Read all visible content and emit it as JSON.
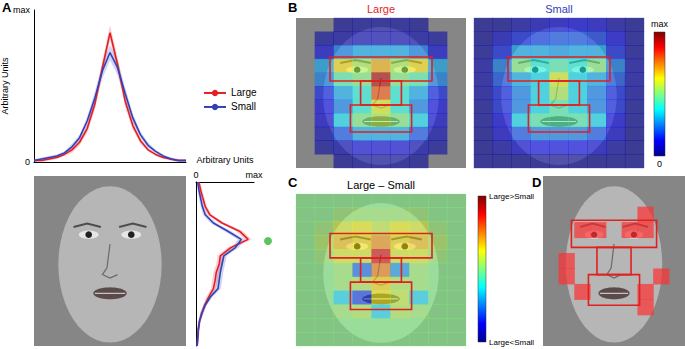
{
  "chart_data": [
    {
      "panel": "A",
      "type": "line",
      "x": [
        0,
        5,
        10,
        15,
        20,
        25,
        30,
        35,
        40,
        45,
        50,
        55,
        60,
        65,
        70,
        75,
        80,
        85,
        90,
        95,
        100
      ],
      "xlim": [
        0,
        100
      ],
      "ylim": [
        0,
        1
      ],
      "yticks": [
        0,
        {
          "value": 1,
          "label": "max"
        }
      ],
      "y_label": "Arbitrary Units",
      "tick_labels": "y",
      "legend": "right",
      "series": [
        {
          "name": "Large",
          "color": "#e41e26",
          "values": [
            0.01,
            0.01,
            0.02,
            0.03,
            0.05,
            0.08,
            0.13,
            0.22,
            0.38,
            0.62,
            0.85,
            0.64,
            0.4,
            0.24,
            0.14,
            0.08,
            0.05,
            0.03,
            0.02,
            0.01,
            0.01
          ],
          "lower": [
            0.0,
            0.0,
            0.01,
            0.02,
            0.04,
            0.06,
            0.11,
            0.19,
            0.34,
            0.57,
            0.8,
            0.59,
            0.36,
            0.21,
            0.12,
            0.07,
            0.04,
            0.02,
            0.01,
            0.0,
            0.0
          ],
          "upper": [
            0.02,
            0.02,
            0.03,
            0.04,
            0.06,
            0.1,
            0.15,
            0.25,
            0.42,
            0.67,
            0.9,
            0.69,
            0.44,
            0.27,
            0.16,
            0.09,
            0.06,
            0.04,
            0.03,
            0.02,
            0.02
          ]
        },
        {
          "name": "Small",
          "color": "#3341b8",
          "values": [
            0.01,
            0.02,
            0.03,
            0.04,
            0.06,
            0.1,
            0.16,
            0.27,
            0.42,
            0.6,
            0.72,
            0.62,
            0.45,
            0.29,
            0.18,
            0.11,
            0.07,
            0.04,
            0.02,
            0.01,
            0.01
          ],
          "lower": [
            0.0,
            0.01,
            0.02,
            0.03,
            0.05,
            0.08,
            0.14,
            0.24,
            0.38,
            0.55,
            0.67,
            0.57,
            0.41,
            0.26,
            0.16,
            0.09,
            0.06,
            0.03,
            0.01,
            0.0,
            0.0
          ],
          "upper": [
            0.02,
            0.03,
            0.04,
            0.05,
            0.07,
            0.12,
            0.18,
            0.3,
            0.46,
            0.65,
            0.77,
            0.67,
            0.49,
            0.32,
            0.2,
            0.13,
            0.08,
            0.05,
            0.03,
            0.02,
            0.02
          ]
        }
      ]
    },
    {
      "panel": "A",
      "type": "line",
      "orientation": "horizontal",
      "y": [
        0,
        5,
        10,
        15,
        20,
        25,
        30,
        35,
        40,
        45,
        50,
        55,
        60,
        65,
        70,
        75,
        80,
        85,
        90,
        95,
        100
      ],
      "ylim": [
        0,
        100
      ],
      "xlim": [
        0,
        1
      ],
      "xticks": [
        0,
        {
          "value": 1,
          "label": "max"
        }
      ],
      "x_label": "Arbitrary Units",
      "tick_labels": "x",
      "significant_y": 36,
      "series": [
        {
          "name": "Large",
          "color": "#e41e26",
          "values": [
            0.05,
            0.08,
            0.12,
            0.16,
            0.24,
            0.45,
            0.75,
            0.9,
            0.6,
            0.42,
            0.4,
            0.35,
            0.33,
            0.3,
            0.22,
            0.15,
            0.1,
            0.06,
            0.04,
            0.03,
            0.02
          ],
          "lower": [
            0.03,
            0.05,
            0.09,
            0.13,
            0.2,
            0.4,
            0.69,
            0.84,
            0.54,
            0.37,
            0.35,
            0.3,
            0.28,
            0.26,
            0.18,
            0.12,
            0.07,
            0.04,
            0.02,
            0.01,
            0.01
          ],
          "upper": [
            0.07,
            0.11,
            0.15,
            0.19,
            0.28,
            0.5,
            0.81,
            0.96,
            0.66,
            0.47,
            0.45,
            0.4,
            0.38,
            0.34,
            0.26,
            0.18,
            0.13,
            0.08,
            0.06,
            0.05,
            0.03
          ]
        },
        {
          "name": "Small",
          "color": "#3341b8",
          "values": [
            0.03,
            0.05,
            0.08,
            0.11,
            0.16,
            0.3,
            0.55,
            0.78,
            0.68,
            0.48,
            0.45,
            0.42,
            0.4,
            0.38,
            0.25,
            0.16,
            0.1,
            0.06,
            0.04,
            0.03,
            0.02
          ],
          "lower": [
            0.01,
            0.03,
            0.05,
            0.08,
            0.12,
            0.25,
            0.49,
            0.72,
            0.62,
            0.43,
            0.4,
            0.37,
            0.35,
            0.33,
            0.21,
            0.13,
            0.07,
            0.04,
            0.02,
            0.01,
            0.01
          ],
          "upper": [
            0.05,
            0.07,
            0.11,
            0.14,
            0.2,
            0.35,
            0.61,
            0.84,
            0.74,
            0.53,
            0.5,
            0.47,
            0.45,
            0.43,
            0.29,
            0.19,
            0.13,
            0.08,
            0.06,
            0.05,
            0.03
          ]
        }
      ]
    },
    {
      "panel": "B",
      "type": "heatmap",
      "series": [
        {
          "name": "Large",
          "color": "#e41e26",
          "cells": [
            [
              null,
              null,
              0.02,
              0.03,
              0.03,
              0.03,
              0.02,
              null,
              null
            ],
            [
              null,
              0.03,
              0.05,
              0.06,
              0.06,
              0.06,
              0.05,
              0.03,
              null
            ],
            [
              null,
              0.1,
              0.25,
              0.3,
              0.3,
              0.3,
              0.25,
              0.1,
              null
            ],
            [
              null,
              0.3,
              0.65,
              0.55,
              0.7,
              0.55,
              0.65,
              0.3,
              null
            ],
            [
              null,
              0.25,
              0.45,
              0.5,
              0.95,
              0.5,
              0.45,
              0.25,
              null
            ],
            [
              null,
              0.15,
              0.3,
              0.4,
              0.8,
              0.4,
              0.3,
              0.15,
              null
            ],
            [
              null,
              0.12,
              0.25,
              0.4,
              0.6,
              0.4,
              0.25,
              0.12,
              null
            ],
            [
              null,
              0.1,
              0.35,
              0.5,
              0.55,
              0.5,
              0.35,
              0.1,
              null
            ],
            [
              null,
              0.06,
              0.2,
              0.3,
              0.3,
              0.3,
              0.2,
              0.06,
              null
            ],
            [
              null,
              0.03,
              0.06,
              0.1,
              0.1,
              0.1,
              0.06,
              0.03,
              null
            ],
            [
              null,
              null,
              0.02,
              0.03,
              0.03,
              0.03,
              0.02,
              null,
              null
            ]
          ]
        },
        {
          "name": "Small",
          "color": "#3341b8",
          "cells": [
            [
              0.02,
              0.02,
              0.05,
              0.08,
              0.1,
              0.12,
              0.1,
              0.05,
              0.02
            ],
            [
              0.02,
              0.08,
              0.15,
              0.18,
              0.2,
              0.2,
              0.18,
              0.12,
              0.03
            ],
            [
              0.03,
              0.15,
              0.3,
              0.3,
              0.28,
              0.3,
              0.3,
              0.15,
              0.03
            ],
            [
              0.05,
              0.25,
              0.5,
              0.4,
              0.45,
              0.4,
              0.5,
              0.25,
              0.05
            ],
            [
              0.05,
              0.2,
              0.3,
              0.35,
              0.6,
              0.35,
              0.3,
              0.2,
              0.05
            ],
            [
              0.04,
              0.15,
              0.25,
              0.35,
              0.55,
              0.35,
              0.25,
              0.15,
              0.04
            ],
            [
              0.03,
              0.15,
              0.25,
              0.35,
              0.45,
              0.35,
              0.25,
              0.15,
              0.03
            ],
            [
              0.03,
              0.12,
              0.35,
              0.45,
              0.45,
              0.45,
              0.35,
              0.12,
              0.03
            ],
            [
              0.02,
              0.1,
              0.2,
              0.25,
              0.25,
              0.25,
              0.2,
              0.1,
              0.02
            ],
            [
              0.02,
              0.05,
              0.1,
              0.12,
              0.12,
              0.12,
              0.1,
              0.05,
              0.02
            ],
            [
              0.02,
              0.02,
              0.02,
              0.02,
              0.02,
              0.02,
              0.02,
              0.02,
              0.02
            ]
          ]
        }
      ],
      "colorbar": {
        "range": [
          0,
          1
        ],
        "ticks": [
          0,
          {
            "value": 1,
            "label": "max"
          }
        ]
      }
    },
    {
      "panel": "C",
      "type": "heatmap",
      "title": "Large – Small",
      "cells": [
        [
          0,
          0,
          0,
          0,
          0,
          0,
          0,
          0,
          0
        ],
        [
          0,
          0,
          0.05,
          0.05,
          0.05,
          0.05,
          0.05,
          0,
          0
        ],
        [
          0,
          0.05,
          0.2,
          0.25,
          0.15,
          0.25,
          0.2,
          0.05,
          0
        ],
        [
          0,
          0.1,
          0.35,
          0.3,
          0.45,
          0.3,
          0.35,
          0.1,
          0
        ],
        [
          0,
          0.05,
          0.2,
          0.2,
          0.8,
          0.2,
          0.2,
          0.05,
          0
        ],
        [
          0,
          0,
          0.05,
          -0.55,
          0.5,
          -0.45,
          0.05,
          0,
          0
        ],
        [
          0,
          0,
          0.05,
          0.1,
          0.3,
          0.1,
          0.05,
          0,
          0
        ],
        [
          0,
          0,
          -0.3,
          -0.65,
          0.25,
          0.15,
          -0.3,
          0,
          0
        ],
        [
          0,
          0,
          0.05,
          0.1,
          -0.3,
          0.1,
          0.05,
          0,
          0
        ],
        [
          0,
          0,
          0,
          0,
          0,
          0,
          0,
          0,
          0
        ],
        [
          0,
          0,
          0,
          0,
          0,
          0,
          0,
          0,
          0
        ]
      ],
      "colorbar": {
        "range": [
          -1,
          1
        ],
        "ticks": [
          {
            "value": -1,
            "label": "Large<Small"
          },
          {
            "value": 1,
            "label": "Large>Small"
          }
        ]
      }
    },
    {
      "panel": "D",
      "type": "heatmap",
      "color": "#ff3030",
      "cells": [
        [
          0,
          0,
          0,
          0,
          0,
          0,
          0,
          0,
          0
        ],
        [
          0,
          0,
          0,
          0,
          0,
          0,
          0,
          0,
          0
        ],
        [
          0,
          0,
          0,
          0,
          0,
          0,
          1,
          0,
          0
        ],
        [
          0,
          0,
          1,
          1,
          0,
          1,
          1,
          0,
          0
        ],
        [
          0,
          0,
          0,
          0,
          0,
          0,
          0,
          0,
          0
        ],
        [
          0,
          1,
          0,
          0,
          0,
          0,
          0,
          0,
          0
        ],
        [
          0,
          1,
          0,
          0,
          0,
          0,
          0,
          1,
          0
        ],
        [
          0,
          0,
          1,
          0,
          0,
          0,
          1,
          0,
          0
        ],
        [
          0,
          0,
          0,
          0,
          0,
          0,
          1,
          0,
          0
        ],
        [
          0,
          0,
          0,
          0,
          0,
          0,
          0,
          0,
          0
        ],
        [
          0,
          0,
          0,
          0,
          0,
          0,
          0,
          0,
          0
        ]
      ]
    }
  ]
}
